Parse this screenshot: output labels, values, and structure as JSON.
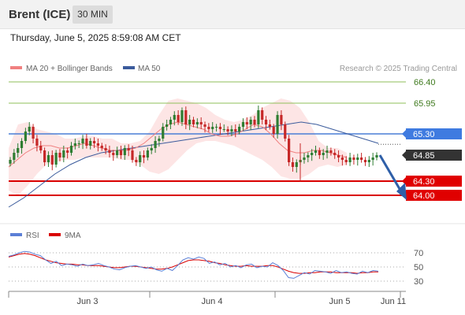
{
  "header": {
    "instrument": "Brent (ICE)",
    "timeframe": "30 MIN"
  },
  "timestamp": "Thursday, June 5, 2025 8:59:08 AM CET",
  "colors": {
    "candle_up": "#2e7d32",
    "candle_down": "#c62828",
    "ma20": "#f08080",
    "bollinger_fill": "#fde0e0",
    "ma50": "#3b5b9c",
    "resistance_line": "#8fbf5a",
    "pivot_line": "#4a7fd6",
    "support_line": "#d90000",
    "arrow": "#2f5fa8",
    "rsi": "#5b7fd6",
    "rsi_ma": "#d90000"
  },
  "chart_data": [
    {
      "type": "candlestick",
      "title": "",
      "legend": [
        "MA 20 + Bollinger Bands",
        "MA 50"
      ],
      "watermark": "Research © 2025 Trading Central",
      "x_labels": [
        "Jun 3",
        "Jun 4",
        "Jun 5",
        "Jun 11"
      ],
      "ylim": [
        63.6,
        66.6
      ],
      "levels": [
        {
          "label": "66.40",
          "value": 66.4,
          "kind": "resistance"
        },
        {
          "label": "65.95",
          "value": 65.95,
          "kind": "resistance"
        },
        {
          "label": "65.30",
          "value": 65.3,
          "kind": "pivot"
        },
        {
          "label": "64.85",
          "value": 64.85,
          "kind": "last"
        },
        {
          "label": "64.30",
          "value": 64.3,
          "kind": "support"
        },
        {
          "label": "64.00",
          "value": 64.0,
          "kind": "support"
        }
      ],
      "close_path": [
        64.75,
        64.9,
        65.0,
        65.15,
        65.35,
        65.45,
        65.2,
        65.05,
        64.95,
        64.7,
        64.85,
        64.65,
        64.9,
        64.8,
        64.95,
        64.9,
        65.05,
        65.1,
        65.1,
        65.2,
        65.05,
        65.15,
        65.1,
        65.05,
        65.0,
        64.95,
        64.9,
        64.85,
        64.95,
        64.85,
        65.0,
        64.95,
        64.75,
        64.7,
        64.85,
        64.8,
        64.95,
        65.0,
        65.15,
        65.2,
        65.45,
        65.5,
        65.6,
        65.7,
        65.55,
        65.8,
        65.5,
        65.6,
        65.5,
        65.55,
        65.5,
        65.45,
        65.4,
        65.45,
        65.45,
        65.4,
        65.4,
        65.35,
        65.4,
        65.35,
        65.45,
        65.55,
        65.5,
        65.6,
        65.5,
        65.8,
        65.6,
        65.5,
        65.45,
        65.3,
        65.7,
        65.5,
        65.2,
        64.7,
        64.6,
        64.7,
        64.75,
        64.8,
        64.85,
        64.9,
        64.95,
        64.85,
        64.9,
        64.95,
        64.9,
        64.85,
        64.8,
        64.75,
        64.7,
        64.8,
        64.75,
        64.8,
        64.75,
        64.7,
        64.75,
        64.8,
        64.85
      ],
      "ma20_path": [
        64.6,
        64.75,
        64.9,
        65.0,
        65.05,
        65.05,
        65.0,
        65.0,
        65.05,
        65.1,
        65.05,
        65.0,
        64.95,
        64.95,
        64.95,
        65.0,
        65.1,
        65.25,
        65.4,
        65.5,
        65.55,
        65.5,
        65.45,
        65.4,
        65.3,
        65.25,
        65.25,
        65.3,
        65.4,
        65.5,
        65.45,
        65.3,
        65.1,
        64.95,
        64.9,
        64.9,
        64.95,
        64.95,
        64.9,
        64.85,
        64.8
      ],
      "ma50_path": [
        63.75,
        63.95,
        64.2,
        64.45,
        64.65,
        64.8,
        64.9,
        64.95,
        65.0,
        65.05,
        65.1,
        65.15,
        65.2,
        65.25,
        65.3,
        65.35,
        65.4,
        65.45,
        65.5,
        65.55,
        65.5,
        65.4,
        65.3,
        65.2,
        65.1
      ],
      "bb_upper_path": [
        65.0,
        65.5,
        65.55,
        65.4,
        65.35,
        65.3,
        65.2,
        65.2,
        65.25,
        65.25,
        65.2,
        65.2,
        65.1,
        65.1,
        65.15,
        65.35,
        65.7,
        66.0,
        66.05,
        66.0,
        65.95,
        65.85,
        65.7,
        65.6,
        65.55,
        65.6,
        65.7,
        65.85,
        65.95,
        66.05,
        66.0,
        65.85,
        65.55,
        65.15,
        65.0,
        65.0,
        64.9
      ],
      "bb_lower_path": [
        64.1,
        64.0,
        64.2,
        64.45,
        64.65,
        64.7,
        64.75,
        64.75,
        64.8,
        64.8,
        64.8,
        64.8,
        64.75,
        64.75,
        64.65,
        64.5,
        64.45,
        64.55,
        64.75,
        64.95,
        65.1,
        65.15,
        65.15,
        65.1,
        65.05,
        64.95,
        64.85,
        64.75,
        64.6,
        64.4,
        64.35,
        64.35,
        64.45,
        64.6,
        64.65,
        64.6,
        64.65
      ]
    },
    {
      "type": "line",
      "title": "",
      "legend": [
        "RSI",
        "9MA"
      ],
      "ylim": [
        20,
        80
      ],
      "y_ticks": [
        "70",
        "50",
        "30"
      ],
      "rsi_path": [
        65,
        67,
        70,
        72,
        71,
        68,
        66,
        60,
        55,
        58,
        52,
        54,
        53,
        51,
        54,
        52,
        53,
        55,
        52,
        50,
        47,
        46,
        49,
        51,
        52,
        50,
        48,
        50,
        46,
        44,
        48,
        45,
        52,
        60,
        63,
        61,
        64,
        62,
        55,
        57,
        53,
        55,
        50,
        52,
        49,
        53,
        54,
        49,
        51,
        50,
        56,
        52,
        45,
        35,
        34,
        38,
        42,
        40,
        45,
        44,
        43,
        41,
        45,
        42,
        43,
        41,
        40,
        44,
        42,
        45,
        44
      ],
      "ma9_path": [
        64,
        66,
        68,
        69,
        68,
        66,
        63,
        60,
        58,
        56,
        55,
        54,
        54,
        53,
        53,
        52,
        52,
        52,
        51,
        50,
        49,
        49,
        50,
        51,
        51,
        50,
        49,
        48,
        47,
        47,
        48,
        50,
        53,
        56,
        59,
        60,
        60,
        59,
        58,
        56,
        55,
        53,
        52,
        51,
        51,
        52,
        51,
        51,
        51,
        52,
        52,
        50,
        47,
        44,
        42,
        41,
        41,
        42,
        42,
        43,
        43,
        43,
        42,
        42,
        42,
        42,
        41,
        42,
        42,
        43,
        43
      ]
    }
  ]
}
